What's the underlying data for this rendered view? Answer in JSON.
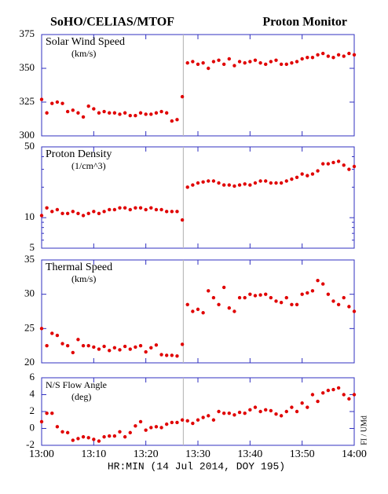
{
  "header": {
    "title_left": "SoHO/CELIAS/MTOF",
    "title_right": "Proton Monitor",
    "credit": "FI / UMd"
  },
  "x_axis": {
    "label": "HR:MIN (14 Jul 2014, DOY 195)",
    "xlim": [
      0,
      60
    ],
    "xticks": [
      {
        "value": 0,
        "label": "13:00"
      },
      {
        "value": 10,
        "label": "13:10"
      },
      {
        "value": 20,
        "label": "13:20"
      },
      {
        "value": 30,
        "label": "13:30"
      },
      {
        "value": 40,
        "label": "13:40"
      },
      {
        "value": 50,
        "label": "13:50"
      },
      {
        "value": 60,
        "label": "14:00"
      }
    ],
    "x": [
      0,
      1,
      2,
      3,
      4,
      5,
      6,
      7,
      8,
      9,
      10,
      11,
      12,
      13,
      14,
      15,
      16,
      17,
      18,
      19,
      20,
      21,
      22,
      23,
      24,
      25,
      26,
      27,
      28,
      29,
      30,
      31,
      32,
      33,
      34,
      35,
      36,
      37,
      38,
      39,
      40,
      41,
      42,
      43,
      44,
      45,
      46,
      47,
      48,
      49,
      50,
      51,
      52,
      53,
      54,
      55,
      56,
      57,
      58,
      59,
      60
    ],
    "vline_x": 27.2
  },
  "chart_data": [
    {
      "type": "scatter",
      "label": "Solar Wind Speed",
      "unit": "(km/s)",
      "ylim": [
        300,
        375
      ],
      "yticks": [
        300,
        325,
        350,
        375
      ],
      "color": "#e00000",
      "values": [
        327,
        317,
        324,
        325,
        324,
        318,
        319,
        317,
        314,
        322,
        320,
        317,
        318,
        317,
        317,
        316,
        317,
        315,
        315,
        317,
        316,
        316,
        317,
        318,
        317,
        311,
        312,
        329,
        354,
        355,
        353,
        354,
        350,
        355,
        356,
        353,
        357,
        352,
        355,
        354,
        355,
        356,
        354,
        353,
        355,
        356,
        353,
        353,
        354,
        355,
        357,
        358,
        358,
        360,
        361,
        359,
        358,
        360,
        359,
        361,
        360
      ]
    },
    {
      "type": "scatter",
      "label": "Proton Density",
      "unit": "(1/cm^3)",
      "log": true,
      "ylim": [
        5,
        50
      ],
      "yticks": [
        5,
        10,
        50
      ],
      "yminor": [
        6,
        7,
        8,
        9,
        20,
        30,
        40
      ],
      "color": "#e00000",
      "values": [
        10.5,
        12.5,
        11.5,
        12,
        11,
        11,
        11.5,
        11,
        10.5,
        11,
        11.5,
        11,
        11.5,
        12,
        12,
        12.5,
        12.5,
        12,
        12.5,
        12.5,
        12,
        12.5,
        12,
        12,
        11.5,
        11.5,
        11.5,
        9.5,
        20,
        21,
        22,
        22.5,
        23,
        23,
        22,
        21,
        21,
        20.5,
        21,
        21.5,
        21,
        22,
        23,
        23,
        22,
        22,
        22,
        23,
        24,
        25,
        27,
        26,
        27,
        29,
        34,
        34,
        35,
        36,
        33,
        30,
        32
      ]
    },
    {
      "type": "scatter",
      "label": "Thermal Speed",
      "unit": "(km/s)",
      "ylim": [
        20,
        35
      ],
      "yticks": [
        20,
        25,
        30,
        35
      ],
      "color": "#e00000",
      "values": [
        25,
        22.5,
        24.3,
        24,
        22.8,
        22.5,
        21.5,
        23.4,
        22.5,
        22.5,
        22.3,
        22.0,
        22.4,
        21.8,
        22.2,
        21.9,
        22.4,
        22.0,
        22.3,
        22.5,
        21.6,
        22.2,
        22.6,
        21.2,
        21.1,
        21.1,
        21.0,
        22.7,
        28.5,
        27.5,
        27.8,
        27.3,
        30.5,
        29.5,
        28.5,
        31.0,
        28.0,
        27.5,
        29.5,
        29.5,
        30,
        29.8,
        29.9,
        30,
        29.5,
        29.0,
        28.8,
        29.5,
        28.5,
        28.5,
        30,
        30.2,
        30.5,
        32,
        31.5,
        30,
        29,
        28.5,
        29.5,
        28.2,
        27.5
      ]
    },
    {
      "type": "scatter",
      "label": "N/S Flow Angle",
      "unit": "(deg)",
      "ylim": [
        -2,
        6
      ],
      "yticks": [
        -2,
        0,
        2,
        4,
        6
      ],
      "color": "#e00000",
      "values": [
        0.8,
        1.8,
        1.8,
        0.2,
        -0.4,
        -0.5,
        -1.4,
        -1.2,
        -1.0,
        -1.1,
        -1.3,
        -1.5,
        -1.0,
        -0.9,
        -0.9,
        -0.4,
        -1.0,
        -0.5,
        0.3,
        0.8,
        -0.2,
        0.1,
        0.2,
        0.1,
        0.5,
        0.7,
        0.7,
        1.0,
        0.9,
        0.6,
        1.0,
        1.3,
        1.5,
        1.0,
        2.0,
        1.8,
        1.8,
        1.6,
        1.9,
        1.8,
        2.2,
        2.5,
        2.0,
        2.2,
        2.1,
        1.7,
        1.5,
        2.0,
        2.5,
        2.0,
        3.0,
        2.5,
        4.0,
        3.2,
        4.2,
        4.5,
        4.6,
        4.8,
        4.0,
        3.5,
        4.0
      ]
    }
  ]
}
